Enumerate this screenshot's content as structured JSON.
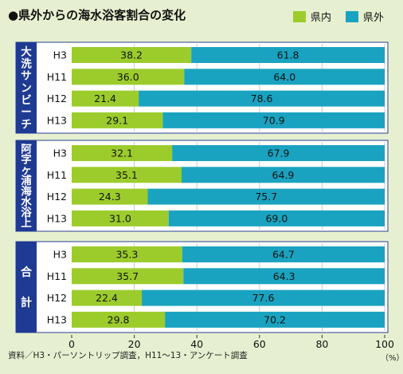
{
  "chart_data": {
    "type": "bar",
    "orientation": "horizontal",
    "stacked": true,
    "title": "●県外からの海水浴客割合の変化",
    "legend": [
      {
        "name": "県内",
        "color": "#9ccc2c"
      },
      {
        "name": "県外",
        "color": "#1aa3c0"
      }
    ],
    "legend_position": "top-right",
    "categories": [
      "H3",
      "H11",
      "H12",
      "H13"
    ],
    "groups": [
      {
        "label": "大洗サンビーチ",
        "series": [
          {
            "name": "県内",
            "values": [
              38.2,
              36.0,
              21.4,
              29.1
            ]
          },
          {
            "name": "県外",
            "values": [
              61.8,
              64.0,
              78.6,
              70.9
            ]
          }
        ]
      },
      {
        "label": "阿字ヶ浦海水浴上",
        "series": [
          {
            "name": "県内",
            "values": [
              32.1,
              35.1,
              24.3,
              31.0
            ]
          },
          {
            "name": "県外",
            "values": [
              67.9,
              64.9,
              75.7,
              69.0
            ]
          }
        ]
      },
      {
        "label": "合計",
        "series": [
          {
            "name": "県内",
            "values": [
              35.3,
              35.7,
              22.4,
              29.8
            ]
          },
          {
            "name": "県外",
            "values": [
              64.7,
              64.3,
              77.6,
              70.2
            ]
          }
        ]
      }
    ],
    "xlim": [
      0,
      100
    ],
    "xticks": [
      "0",
      "20",
      "40",
      "60",
      "80",
      "100"
    ],
    "xunit": "（%）",
    "grid": true,
    "source": "資料／H3・パーソントリップ調査，H11〜13・アンケート調査"
  }
}
